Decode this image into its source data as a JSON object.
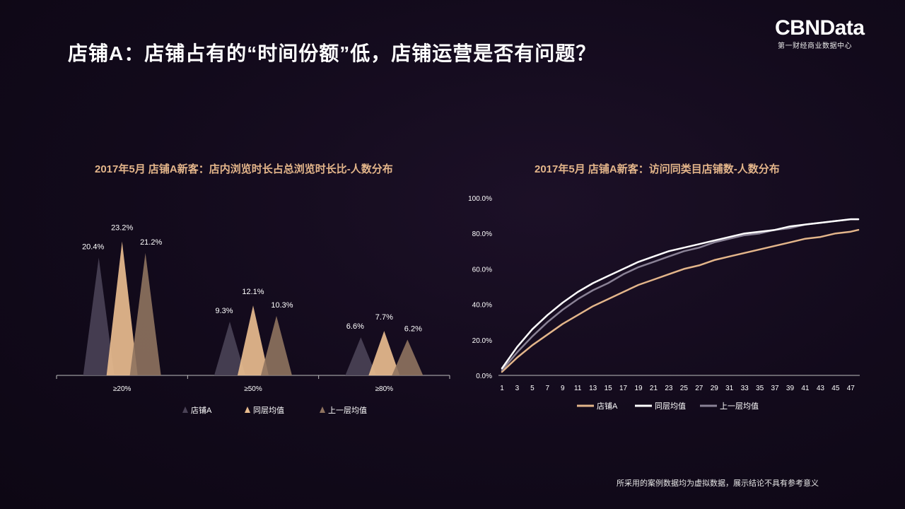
{
  "title": "店铺A：店铺占有的“时间份额”低，店铺运营是否有问题？",
  "logo": {
    "main": "CBNData",
    "sub": "第一财经商业数据中心"
  },
  "footer": "所采用的案例数据均为虚拟数据，展示结论不具有参考意义",
  "colors": {
    "storeA": "#4a4256",
    "peer": "#e8bc8e",
    "upper": "#8f735f",
    "line_storeA": "#e3b58a",
    "line_peer": "#ffffff",
    "line_upper": "#8a8296",
    "title_accent": "#e3b58a"
  },
  "chart_data": [
    {
      "type": "bar",
      "title": "2017年5月 店铺A新客：店内浏览时长占总浏览时长比-人数分布",
      "categories": [
        "≥20%",
        "≥50%",
        "≥80%"
      ],
      "series": [
        {
          "name": "店铺A",
          "values": [
            20.4,
            9.3,
            6.6
          ],
          "labels": [
            "20.4%",
            "9.3%",
            "6.6%"
          ]
        },
        {
          "name": "同层均值",
          "values": [
            23.2,
            12.1,
            7.7
          ],
          "labels": [
            "23.2%",
            "12.1%",
            "7.7%"
          ]
        },
        {
          "name": "上一层均值",
          "values": [
            21.2,
            10.3,
            6.2
          ],
          "labels": [
            "21.2%",
            "10.3%",
            "6.2%"
          ]
        }
      ],
      "ylim": [
        0,
        24
      ],
      "legend": "bottom",
      "grid": false
    },
    {
      "type": "line",
      "title": "2017年5月 店铺A新客：访问同类目店铺数-人数分布",
      "x": [
        1,
        48
      ],
      "xticks": [
        "1",
        "3",
        "5",
        "7",
        "9",
        "11",
        "13",
        "15",
        "17",
        "19",
        "21",
        "23",
        "25",
        "27",
        "29",
        "31",
        "33",
        "35",
        "37",
        "39",
        "41",
        "43",
        "45",
        "47"
      ],
      "yticks": [
        "0.0%",
        "20.0%",
        "40.0%",
        "60.0%",
        "80.0%",
        "100.0%"
      ],
      "ylim": [
        0,
        100
      ],
      "series": [
        {
          "name": "店铺A",
          "x": [
            1,
            3,
            5,
            7,
            9,
            11,
            13,
            15,
            17,
            19,
            21,
            23,
            25,
            27,
            29,
            31,
            33,
            35,
            37,
            39,
            41,
            43,
            45,
            47,
            48
          ],
          "values": [
            2,
            10,
            17,
            23,
            29,
            34,
            39,
            43,
            47,
            51,
            54,
            57,
            60,
            62,
            65,
            67,
            69,
            71,
            73,
            75,
            77,
            78,
            80,
            81,
            82
          ]
        },
        {
          "name": "同层均值",
          "x": [
            1,
            3,
            5,
            7,
            9,
            11,
            13,
            15,
            17,
            19,
            21,
            23,
            25,
            27,
            29,
            31,
            33,
            35,
            37,
            39,
            41,
            43,
            45,
            47,
            48
          ],
          "values": [
            4,
            16,
            26,
            34,
            41,
            47,
            52,
            56,
            60,
            64,
            67,
            70,
            72,
            74,
            76,
            78,
            80,
            81,
            82,
            84,
            85,
            86,
            87,
            88,
            88
          ]
        },
        {
          "name": "上一层均值",
          "x": [
            1,
            3,
            5,
            7,
            9,
            11,
            13,
            15,
            17,
            19,
            21,
            23,
            25,
            27,
            29,
            31,
            33,
            35,
            37,
            39,
            41,
            43,
            45,
            47,
            48
          ],
          "values": [
            3,
            13,
            22,
            30,
            37,
            43,
            48,
            52,
            57,
            61,
            64,
            67,
            70,
            72,
            75,
            77,
            79,
            80,
            82,
            83,
            85,
            86,
            87,
            88,
            88
          ]
        }
      ],
      "legend": "bottom",
      "grid": false
    }
  ]
}
